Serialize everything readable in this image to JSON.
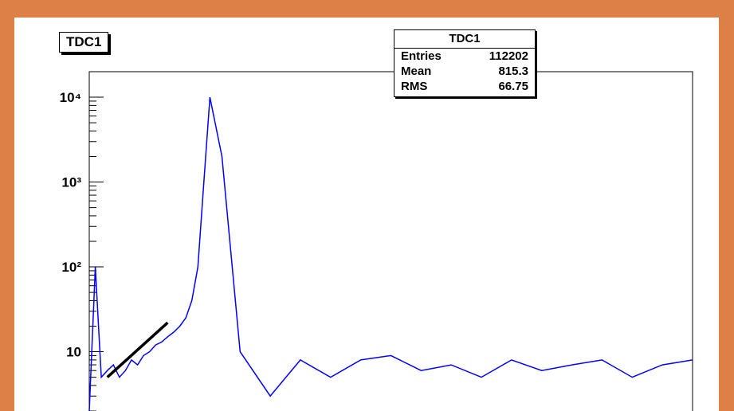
{
  "histogram": {
    "title": "TDC1",
    "stats": {
      "header": "TDC1",
      "rows": [
        {
          "label": "Entries",
          "value": "112202"
        },
        {
          "label": "Mean",
          "value": "815.3"
        },
        {
          "label": "RMS",
          "value": "66.75"
        }
      ]
    }
  },
  "colors": {
    "background": "#dd8048",
    "histogram_line": "#0000ff",
    "fit_line": "#000000",
    "frame": "#000000"
  },
  "chart_data": {
    "type": "line",
    "title": "TDC1",
    "xlabel": "",
    "ylabel": "",
    "y_scale": "log",
    "ylim": [
      2,
      20000
    ],
    "y_tick_labels": [
      "10⁴",
      "10³",
      "10²",
      "10"
    ],
    "grid": false,
    "series": [
      {
        "name": "TDC1",
        "x": [
          0,
          1,
          2,
          3,
          4,
          5,
          6,
          7,
          8,
          9,
          10,
          11,
          12,
          13,
          14,
          15,
          16,
          17,
          18,
          19,
          20,
          22,
          25,
          30,
          35,
          40,
          45,
          50,
          55,
          60,
          65,
          70,
          75,
          80,
          85,
          90,
          95,
          100
        ],
        "y": [
          2,
          100,
          5,
          6,
          7,
          5,
          6,
          8,
          7,
          9,
          10,
          12,
          13,
          15,
          17,
          20,
          25,
          40,
          100,
          1000,
          10000,
          2000,
          10,
          3,
          8,
          5,
          8,
          9,
          6,
          7,
          5,
          8,
          6,
          7,
          8,
          5,
          7,
          8
        ]
      },
      {
        "name": "fit",
        "x": [
          3,
          13
        ],
        "y": [
          5,
          22
        ]
      }
    ]
  }
}
